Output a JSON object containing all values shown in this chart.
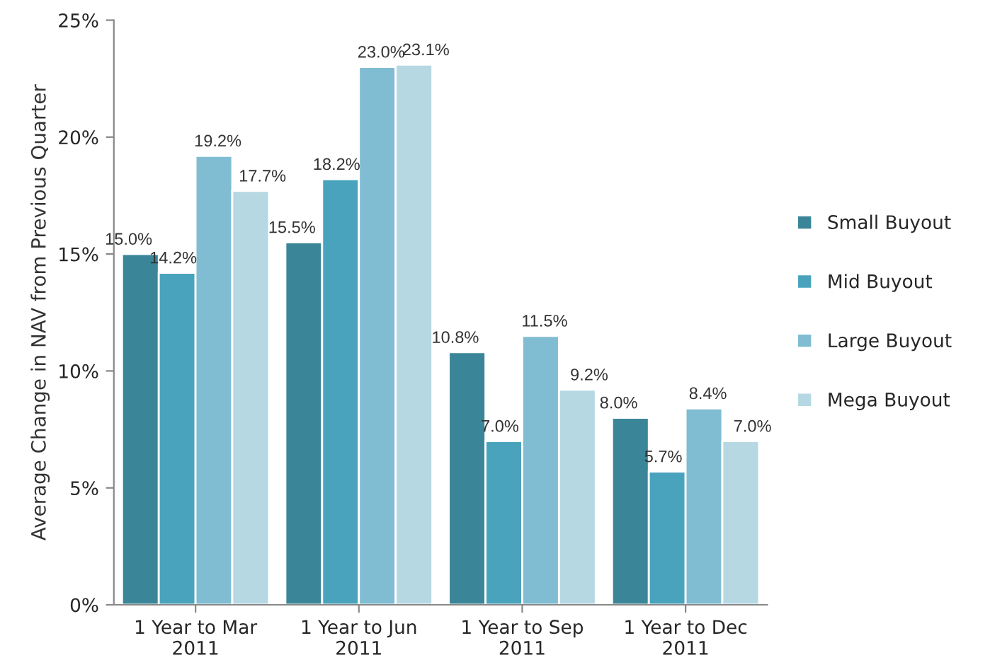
{
  "chart_data": {
    "type": "bar",
    "ylabel": "Average Change in NAV from Previous Quarter",
    "categories": [
      "1 Year to Mar\n2011",
      "1 Year to Jun\n2011",
      "1 Year to Sep\n2011",
      "1 Year to Dec\n2011"
    ],
    "series": [
      {
        "name": "Small Buyout",
        "color": "#3a8698",
        "values": [
          15.0,
          15.5,
          10.8,
          8.0
        ],
        "value_labels": [
          "15.0%",
          "15.5%",
          "10.8%",
          "8.0%"
        ]
      },
      {
        "name": "Mid Buyout",
        "color": "#4aa3bd",
        "values": [
          14.2,
          18.2,
          7.0,
          5.7
        ],
        "value_labels": [
          "14.2%",
          "18.2%",
          "7.0%",
          "5.7%"
        ]
      },
      {
        "name": "Large Buyout",
        "color": "#80bdd3",
        "values": [
          19.2,
          23.0,
          11.5,
          8.4
        ],
        "value_labels": [
          "19.2%",
          "23.0%",
          "11.5%",
          "8.4%"
        ]
      },
      {
        "name": "Mega Buyout",
        "color": "#b6d8e2",
        "values": [
          17.7,
          23.1,
          9.2,
          7.0
        ],
        "value_labels": [
          "17.7%",
          "23.1%",
          "9.2%",
          "7.0%"
        ]
      }
    ],
    "ylim": [
      0,
      25
    ],
    "yticks": [
      {
        "value": 0,
        "label": "0%"
      },
      {
        "value": 5,
        "label": "5%"
      },
      {
        "value": 10,
        "label": "10%"
      },
      {
        "value": 15,
        "label": "15%"
      },
      {
        "value": 20,
        "label": "20%"
      },
      {
        "value": 25,
        "label": "25%"
      }
    ],
    "grid": false,
    "legend": "right"
  }
}
